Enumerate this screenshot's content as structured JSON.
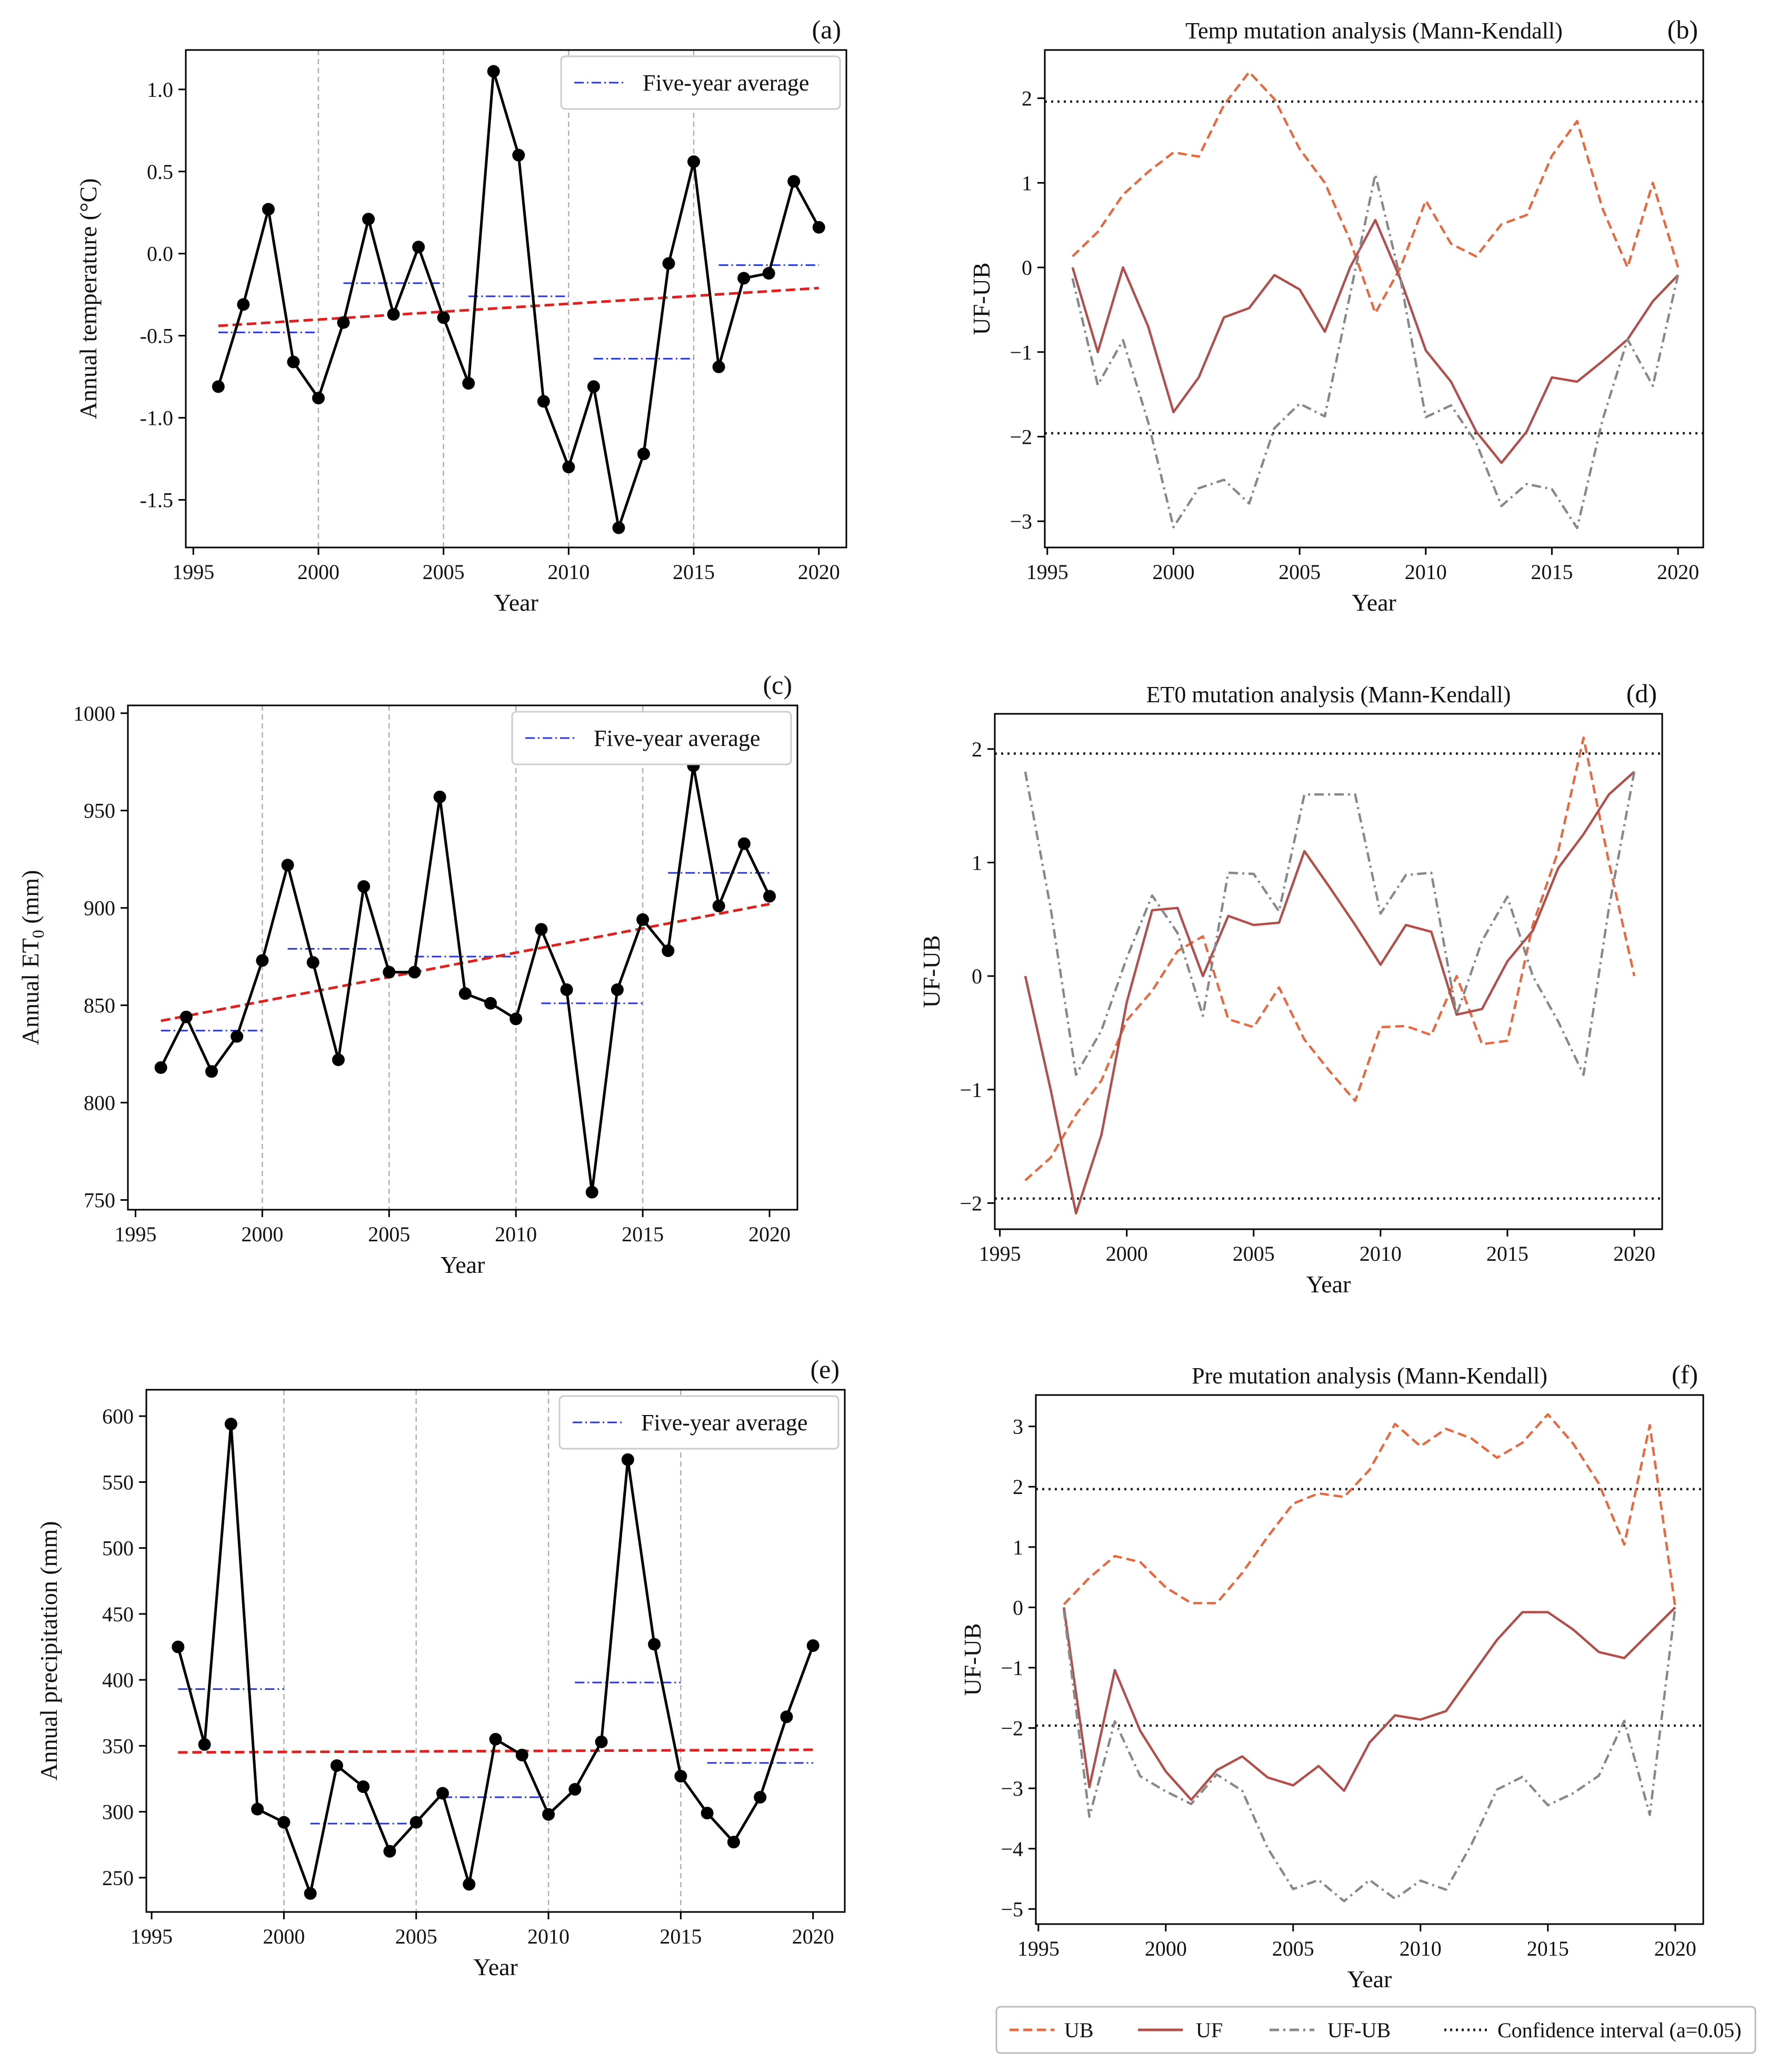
{
  "figure": {
    "legend": {
      "ub": "UB",
      "uf": "UF",
      "ufub": "UF-UB",
      "ci": "Confidence interval (a=0.05)"
    }
  },
  "chart_data": [
    {
      "id": "a",
      "type": "line",
      "panel_label": "(a)",
      "title": "",
      "xlabel": "Year",
      "ylabel": "Annual temperature (°C)",
      "xlim": [
        1994.7,
        2021.1
      ],
      "ylim": [
        -1.79,
        1.24
      ],
      "xticks": [
        1995,
        2000,
        2005,
        2010,
        2015,
        2020
      ],
      "yticks": [
        -1.5,
        -1.0,
        -0.5,
        0.0,
        0.5,
        1.0
      ],
      "ytick_labels": [
        "-1.5",
        "-1.0",
        "-0.5",
        "0.0",
        "0.5",
        "1.0"
      ],
      "vlines": [
        2000,
        2005,
        2010,
        2015
      ],
      "legend_label": "Five-year average",
      "series": [
        {
          "name": "Annual temperature",
          "x": [
            1996,
            1997,
            1998,
            1999,
            2000,
            2001,
            2002,
            2003,
            2004,
            2005,
            2006,
            2007,
            2008,
            2009,
            2010,
            2011,
            2012,
            2013,
            2014,
            2015,
            2016,
            2017,
            2018,
            2019,
            2020
          ],
          "values": [
            -0.81,
            -0.31,
            0.27,
            -0.66,
            -0.88,
            -0.42,
            0.21,
            -0.37,
            0.04,
            -0.39,
            -0.79,
            1.11,
            0.6,
            -0.9,
            -1.3,
            -0.81,
            -1.67,
            -1.22,
            -0.06,
            0.56,
            -0.69,
            -0.15,
            -0.12,
            0.44,
            0.16
          ]
        }
      ],
      "trend": {
        "name": "Linear trend",
        "x": [
          1996,
          2020
        ],
        "values": [
          -0.44,
          -0.21
        ]
      },
      "five_year_average": [
        {
          "x": [
            1996,
            2000
          ],
          "value": -0.48
        },
        {
          "x": [
            2001,
            2005
          ],
          "value": -0.18
        },
        {
          "x": [
            2006,
            2010
          ],
          "value": -0.26
        },
        {
          "x": [
            2011,
            2015
          ],
          "value": -0.64
        },
        {
          "x": [
            2016,
            2020
          ],
          "value": -0.07
        }
      ]
    },
    {
      "id": "b",
      "type": "line",
      "panel_label": "(b)",
      "title": "Temp mutation analysis (Mann-Kendall)",
      "xlabel": "Year",
      "ylabel": "UF-UB",
      "xlim": [
        1994.9,
        2021.0
      ],
      "ylim": [
        -3.31,
        2.57
      ],
      "xticks": [
        1995,
        2000,
        2005,
        2010,
        2015,
        2020
      ],
      "yticks": [
        -3,
        -2,
        -1,
        0,
        1,
        2
      ],
      "ytick_labels": [
        "−3",
        "−2",
        "−1",
        "0",
        "1",
        "2"
      ],
      "confidence_interval": [
        -1.96,
        1.96
      ],
      "x": [
        1996,
        1997,
        1998,
        1999,
        2000,
        2001,
        2002,
        2003,
        2004,
        2005,
        2006,
        2007,
        2008,
        2009,
        2010,
        2011,
        2012,
        2013,
        2014,
        2015,
        2016,
        2017,
        2018,
        2019,
        2020
      ],
      "series": [
        {
          "name": "UB",
          "values": [
            0.13,
            0.42,
            0.86,
            1.13,
            1.36,
            1.31,
            1.92,
            2.31,
            1.99,
            1.4,
            1.0,
            0.32,
            -0.54,
            0.0,
            0.79,
            0.28,
            0.13,
            0.51,
            0.62,
            1.32,
            1.73,
            0.7,
            0.0,
            1.0,
            0.0
          ]
        },
        {
          "name": "UF",
          "values": [
            0.0,
            -1.0,
            0.0,
            -0.7,
            -1.71,
            -1.3,
            -0.59,
            -0.48,
            -0.09,
            -0.26,
            -0.76,
            0.0,
            0.56,
            -0.14,
            -0.98,
            -1.35,
            -1.94,
            -2.31,
            -1.94,
            -1.3,
            -1.35,
            -1.11,
            -0.85,
            -0.4,
            -0.09
          ]
        },
        {
          "name": "UF-UB",
          "values": [
            -0.13,
            -1.39,
            -0.86,
            -1.83,
            -3.07,
            -2.61,
            -2.51,
            -2.79,
            -1.9,
            -1.61,
            -1.76,
            -0.32,
            1.1,
            -0.14,
            -1.77,
            -1.63,
            -2.07,
            -2.82,
            -2.56,
            -2.62,
            -3.08,
            -1.81,
            -0.85,
            -1.4,
            -0.09
          ]
        }
      ]
    },
    {
      "id": "c",
      "type": "line",
      "panel_label": "(c)",
      "title": "",
      "xlabel": "Year",
      "ylabel": "Annual ET0 (mm)",
      "xlim": [
        1994.7,
        2021.1
      ],
      "ylim": [
        745,
        1004
      ],
      "xticks": [
        1995,
        2000,
        2005,
        2010,
        2015,
        2020
      ],
      "yticks": [
        750,
        800,
        850,
        900,
        950,
        1000
      ],
      "ytick_labels": [
        "750",
        "800",
        "850",
        "900",
        "950",
        "1000"
      ],
      "vlines": [
        2000,
        2005,
        2010,
        2015
      ],
      "legend_label": "Five-year average",
      "series": [
        {
          "name": "Annual ET0",
          "x": [
            1996,
            1997,
            1998,
            1999,
            2000,
            2001,
            2002,
            2003,
            2004,
            2005,
            2006,
            2007,
            2008,
            2009,
            2010,
            2011,
            2012,
            2013,
            2014,
            2015,
            2016,
            2017,
            2018,
            2019,
            2020
          ],
          "values": [
            818,
            844,
            816,
            834,
            873,
            922,
            872,
            822,
            911,
            867,
            867,
            957,
            856,
            851,
            843,
            889,
            858,
            754,
            858,
            894,
            878,
            973,
            901,
            933,
            906
          ]
        }
      ],
      "trend": {
        "name": "Linear trend",
        "x": [
          1996,
          2020
        ],
        "values": [
          842,
          902
        ]
      },
      "five_year_average": [
        {
          "x": [
            1996,
            2000
          ],
          "value": 837
        },
        {
          "x": [
            2001,
            2005
          ],
          "value": 879
        },
        {
          "x": [
            2006,
            2010
          ],
          "value": 875
        },
        {
          "x": [
            2011,
            2015
          ],
          "value": 851
        },
        {
          "x": [
            2016,
            2020
          ],
          "value": 918
        }
      ]
    },
    {
      "id": "d",
      "type": "line",
      "panel_label": "(d)",
      "title": "ET0 mutation analysis (Mann-Kendall)",
      "xlabel": "Year",
      "ylabel": "UF-UB",
      "xlim": [
        1994.8,
        2021.1
      ],
      "ylim": [
        -2.23,
        2.31
      ],
      "xticks": [
        1995,
        2000,
        2005,
        2010,
        2015,
        2020
      ],
      "yticks": [
        -2,
        -1,
        0,
        1,
        2
      ],
      "ytick_labels": [
        "−2",
        "−1",
        "0",
        "1",
        "2"
      ],
      "confidence_interval": [
        -1.96,
        1.96
      ],
      "x": [
        1996,
        1997,
        1998,
        1999,
        2000,
        2001,
        2002,
        2003,
        2004,
        2005,
        2006,
        2007,
        2008,
        2009,
        2010,
        2011,
        2012,
        2013,
        2014,
        2015,
        2016,
        2017,
        2018,
        2019,
        2020
      ],
      "series": [
        {
          "name": "UB",
          "values": [
            -1.8,
            -1.6,
            -1.22,
            -0.92,
            -0.39,
            -0.13,
            0.22,
            0.35,
            -0.38,
            -0.45,
            -0.1,
            -0.56,
            -0.84,
            -1.1,
            -0.45,
            -0.44,
            -0.52,
            0.0,
            -0.6,
            -0.57,
            0.45,
            1.1,
            2.1,
            1.0,
            0.0
          ]
        },
        {
          "name": "UF",
          "values": [
            0.0,
            -1.0,
            -2.09,
            -1.4,
            -0.23,
            0.58,
            0.6,
            0.0,
            0.53,
            0.45,
            0.47,
            1.1,
            0.78,
            0.45,
            0.1,
            0.45,
            0.39,
            -0.34,
            -0.29,
            0.13,
            0.4,
            0.95,
            1.25,
            1.6,
            1.8
          ]
        },
        {
          "name": "UF-UB",
          "values": [
            1.8,
            0.6,
            -0.87,
            -0.48,
            0.16,
            0.71,
            0.38,
            -0.35,
            0.91,
            0.9,
            0.57,
            1.6,
            1.6,
            1.6,
            0.55,
            0.89,
            0.91,
            -0.34,
            0.31,
            0.7,
            0.0,
            -0.4,
            -0.87,
            0.6,
            1.8
          ]
        }
      ]
    },
    {
      "id": "e",
      "type": "line",
      "panel_label": "(e)",
      "title": "",
      "xlabel": "Year",
      "ylabel": "Annual precipitation (mm)",
      "xlim": [
        1994.8,
        2021.2
      ],
      "ylim": [
        224,
        620
      ],
      "xticks": [
        1995,
        2000,
        2005,
        2010,
        2015,
        2020
      ],
      "yticks": [
        250,
        300,
        350,
        400,
        450,
        500,
        550,
        600
      ],
      "ytick_labels": [
        "250",
        "300",
        "350",
        "400",
        "450",
        "500",
        "550",
        "600"
      ],
      "vlines": [
        2000,
        2005,
        2010,
        2015
      ],
      "legend_label": "Five-year average",
      "series": [
        {
          "name": "Annual precipitation",
          "x": [
            1996,
            1997,
            1998,
            1999,
            2000,
            2001,
            2002,
            2003,
            2004,
            2005,
            2006,
            2007,
            2008,
            2009,
            2010,
            2011,
            2012,
            2013,
            2014,
            2015,
            2016,
            2017,
            2018,
            2019,
            2020
          ],
          "values": [
            425,
            351,
            594,
            302,
            292,
            238,
            335,
            319,
            270,
            292,
            314,
            245,
            355,
            343,
            298,
            317,
            353,
            567,
            427,
            327,
            299,
            277,
            311,
            372,
            426
          ]
        }
      ],
      "trend": {
        "name": "Linear trend",
        "x": [
          1996,
          2020
        ],
        "values": [
          345,
          347
        ]
      },
      "five_year_average": [
        {
          "x": [
            1996,
            2000
          ],
          "value": 393
        },
        {
          "x": [
            2001,
            2005
          ],
          "value": 291
        },
        {
          "x": [
            2006,
            2010
          ],
          "value": 311
        },
        {
          "x": [
            2011,
            2015
          ],
          "value": 398
        },
        {
          "x": [
            2016,
            2020
          ],
          "value": 337
        }
      ]
    },
    {
      "id": "f",
      "type": "line",
      "panel_label": "(f)",
      "title": "Pre mutation analysis (Mann-Kendall)",
      "xlabel": "Year",
      "ylabel": "UF-UB",
      "xlim": [
        1994.9,
        2021.1
      ],
      "ylim": [
        -5.25,
        3.52
      ],
      "xticks": [
        1995,
        2000,
        2005,
        2010,
        2015,
        2020
      ],
      "yticks": [
        -5,
        -4,
        -3,
        -2,
        -1,
        0,
        1,
        2,
        3
      ],
      "ytick_labels": [
        "−5",
        "−4",
        "−3",
        "−2",
        "−1",
        "0",
        "1",
        "2",
        "3"
      ],
      "confidence_interval": [
        -1.96,
        1.96
      ],
      "x": [
        1996,
        1997,
        1998,
        1999,
        2000,
        2001,
        2002,
        2003,
        2004,
        2005,
        2006,
        2007,
        2008,
        2009,
        2010,
        2011,
        2012,
        2013,
        2014,
        2015,
        2016,
        2017,
        2018,
        2019,
        2020
      ],
      "series": [
        {
          "name": "UB",
          "values": [
            0.05,
            0.49,
            0.85,
            0.75,
            0.33,
            0.07,
            0.07,
            0.57,
            1.17,
            1.72,
            1.89,
            1.83,
            2.28,
            3.04,
            2.67,
            2.96,
            2.8,
            2.48,
            2.73,
            3.2,
            2.71,
            2.05,
            1.04,
            3.02,
            0.0
          ]
        },
        {
          "name": "UF",
          "values": [
            0.0,
            -2.98,
            -1.04,
            -2.05,
            -2.72,
            -3.19,
            -2.7,
            -2.47,
            -2.82,
            -2.95,
            -2.63,
            -3.04,
            -2.24,
            -1.79,
            -1.86,
            -1.72,
            -1.13,
            -0.54,
            -0.08,
            -0.08,
            -0.37,
            -0.74,
            -0.84,
            -0.42,
            0.0
          ]
        },
        {
          "name": "UF-UB",
          "values": [
            -0.05,
            -3.47,
            -1.89,
            -2.8,
            -3.05,
            -3.26,
            -2.77,
            -3.04,
            -3.99,
            -4.67,
            -4.52,
            -4.87,
            -4.52,
            -4.83,
            -4.53,
            -4.68,
            -3.93,
            -3.02,
            -2.81,
            -3.28,
            -3.08,
            -2.79,
            -1.88,
            -3.44,
            0.0
          ]
        }
      ]
    }
  ]
}
